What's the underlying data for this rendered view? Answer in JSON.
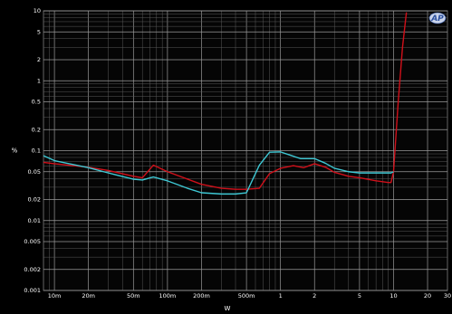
{
  "chart_data": {
    "type": "line",
    "xlabel": "W",
    "ylabel": "%",
    "xscale": "log",
    "yscale": "log",
    "xlim": [
      0.008,
      30
    ],
    "ylim": [
      0.001,
      10
    ],
    "grid": true,
    "x_tick_labels": [
      {
        "value": 0.01,
        "label": "10m"
      },
      {
        "value": 0.02,
        "label": "20m"
      },
      {
        "value": 0.05,
        "label": "50m"
      },
      {
        "value": 0.1,
        "label": "100m"
      },
      {
        "value": 0.2,
        "label": "200m"
      },
      {
        "value": 0.5,
        "label": "500m"
      },
      {
        "value": 1,
        "label": "1"
      },
      {
        "value": 2,
        "label": "2"
      },
      {
        "value": 5,
        "label": "5"
      },
      {
        "value": 10,
        "label": "10"
      },
      {
        "value": 20,
        "label": "20"
      },
      {
        "value": 30,
        "label": "30"
      }
    ],
    "y_tick_labels": [
      {
        "value": 10,
        "label": "10"
      },
      {
        "value": 5,
        "label": "5"
      },
      {
        "value": 2,
        "label": "2"
      },
      {
        "value": 1,
        "label": "1"
      },
      {
        "value": 0.5,
        "label": "0.5"
      },
      {
        "value": 0.2,
        "label": "0.2"
      },
      {
        "value": 0.1,
        "label": "0.1"
      },
      {
        "value": 0.05,
        "label": "0.05"
      },
      {
        "value": 0.02,
        "label": "0.02"
      },
      {
        "value": 0.01,
        "label": "0.01"
      },
      {
        "value": 0.005,
        "label": "0.005"
      },
      {
        "value": 0.002,
        "label": "0.002"
      },
      {
        "value": 0.001,
        "label": "0.001"
      }
    ],
    "series": [
      {
        "color": "#d0101a",
        "x": [
          0.008,
          0.01,
          0.02,
          0.03,
          0.05,
          0.06,
          0.075,
          0.1,
          0.2,
          0.3,
          0.4,
          0.5,
          0.65,
          0.8,
          1.0,
          1.3,
          1.6,
          2.0,
          2.5,
          3.0,
          4.0,
          5.0,
          7.0,
          9.0,
          9.5,
          10.0,
          11.0,
          12.0,
          13.0
        ],
        "y": [
          0.068,
          0.065,
          0.058,
          0.052,
          0.043,
          0.041,
          0.062,
          0.05,
          0.033,
          0.029,
          0.028,
          0.028,
          0.029,
          0.047,
          0.056,
          0.061,
          0.057,
          0.065,
          0.058,
          0.049,
          0.043,
          0.041,
          0.037,
          0.035,
          0.035,
          0.05,
          0.5,
          3.0,
          9.5
        ]
      },
      {
        "color": "#3ec8d4",
        "x": [
          0.008,
          0.01,
          0.02,
          0.03,
          0.05,
          0.06,
          0.075,
          0.1,
          0.15,
          0.2,
          0.3,
          0.4,
          0.5,
          0.65,
          0.8,
          1.0,
          1.2,
          1.5,
          2.0,
          2.5,
          3.0,
          4.0,
          5.0,
          7.0,
          9.0,
          9.5,
          10.0
        ],
        "y": [
          0.085,
          0.072,
          0.057,
          0.048,
          0.039,
          0.038,
          0.042,
          0.037,
          0.029,
          0.025,
          0.024,
          0.024,
          0.025,
          0.062,
          0.095,
          0.096,
          0.087,
          0.077,
          0.077,
          0.066,
          0.056,
          0.05,
          0.048,
          0.048,
          0.048,
          0.048,
          0.05
        ]
      }
    ]
  },
  "logo": {
    "text": "AP"
  }
}
